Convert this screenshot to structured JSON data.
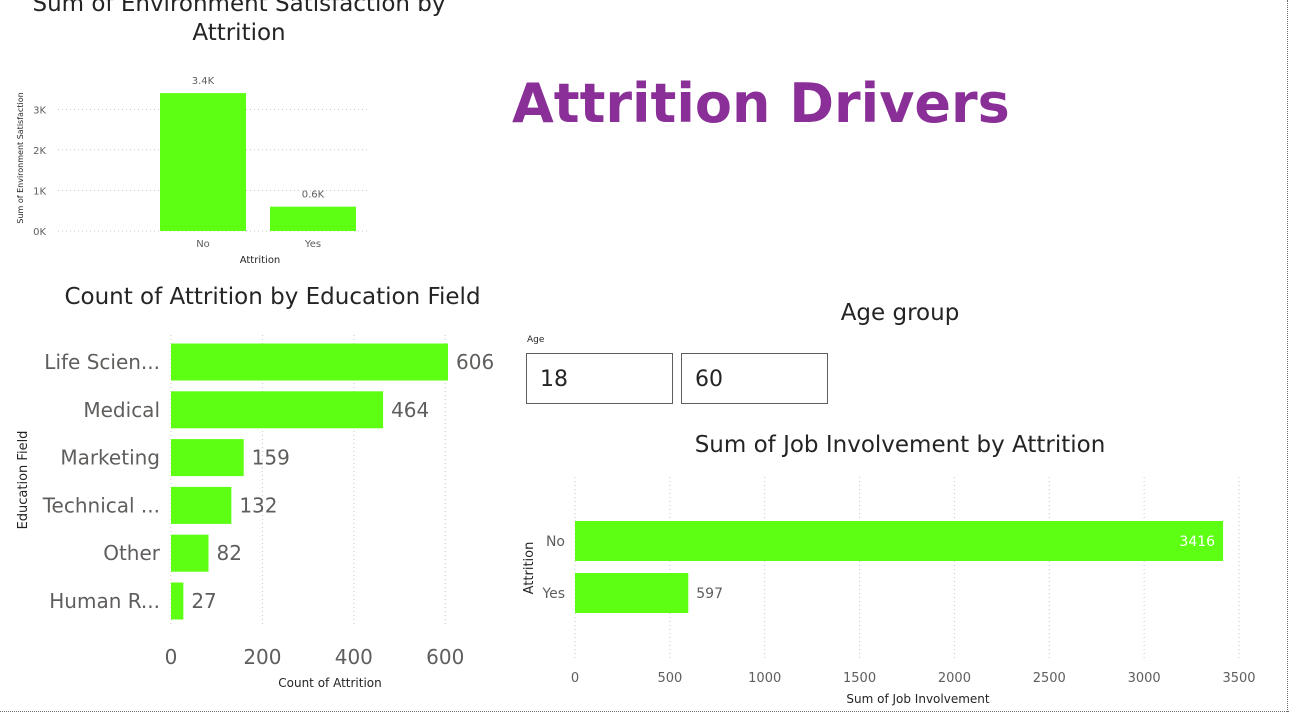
{
  "page": {
    "title": "Attrition Drivers"
  },
  "slicer": {
    "title": "Age group",
    "label": "Age",
    "min": "18",
    "max": "60"
  },
  "chart_data": [
    {
      "id": "env",
      "type": "bar",
      "title": "Sum of Environment Satisfaction by Attrition",
      "xlabel": "Attrition",
      "ylabel": "Sum of Environment Satisfaction",
      "categories": [
        "No",
        "Yes"
      ],
      "values": [
        3400,
        600
      ],
      "data_labels": [
        "3.4K",
        "0.6K"
      ],
      "yticks": [
        0,
        1000,
        2000,
        3000
      ],
      "ytick_labels": [
        "0K",
        "1K",
        "2K",
        "3K"
      ],
      "ylim": [
        0,
        3600
      ],
      "color": "#5dff12",
      "grid": true
    },
    {
      "id": "edu",
      "type": "bar",
      "orientation": "horizontal",
      "title": "Count of Attrition by Education Field",
      "xlabel": "Count of Attrition",
      "ylabel": "Education Field",
      "categories": [
        "Life Scien...",
        "Medical",
        "Marketing",
        "Technical ...",
        "Other",
        "Human R..."
      ],
      "values": [
        606,
        464,
        159,
        132,
        82,
        27
      ],
      "xticks": [
        0,
        200,
        400,
        600
      ],
      "xlim": [
        0,
        606
      ],
      "color": "#5dff12",
      "grid": true
    },
    {
      "id": "job",
      "type": "bar",
      "orientation": "horizontal",
      "title": "Sum of Job Involvement by Attrition",
      "xlabel": "Sum of Job Involvement",
      "ylabel": "Attrition",
      "categories": [
        "No",
        "Yes"
      ],
      "values": [
        3416,
        597
      ],
      "xticks": [
        0,
        500,
        1000,
        1500,
        2000,
        2500,
        3000,
        3500
      ],
      "xlim": [
        0,
        3500
      ],
      "color": "#5dff12",
      "grid": true
    }
  ]
}
